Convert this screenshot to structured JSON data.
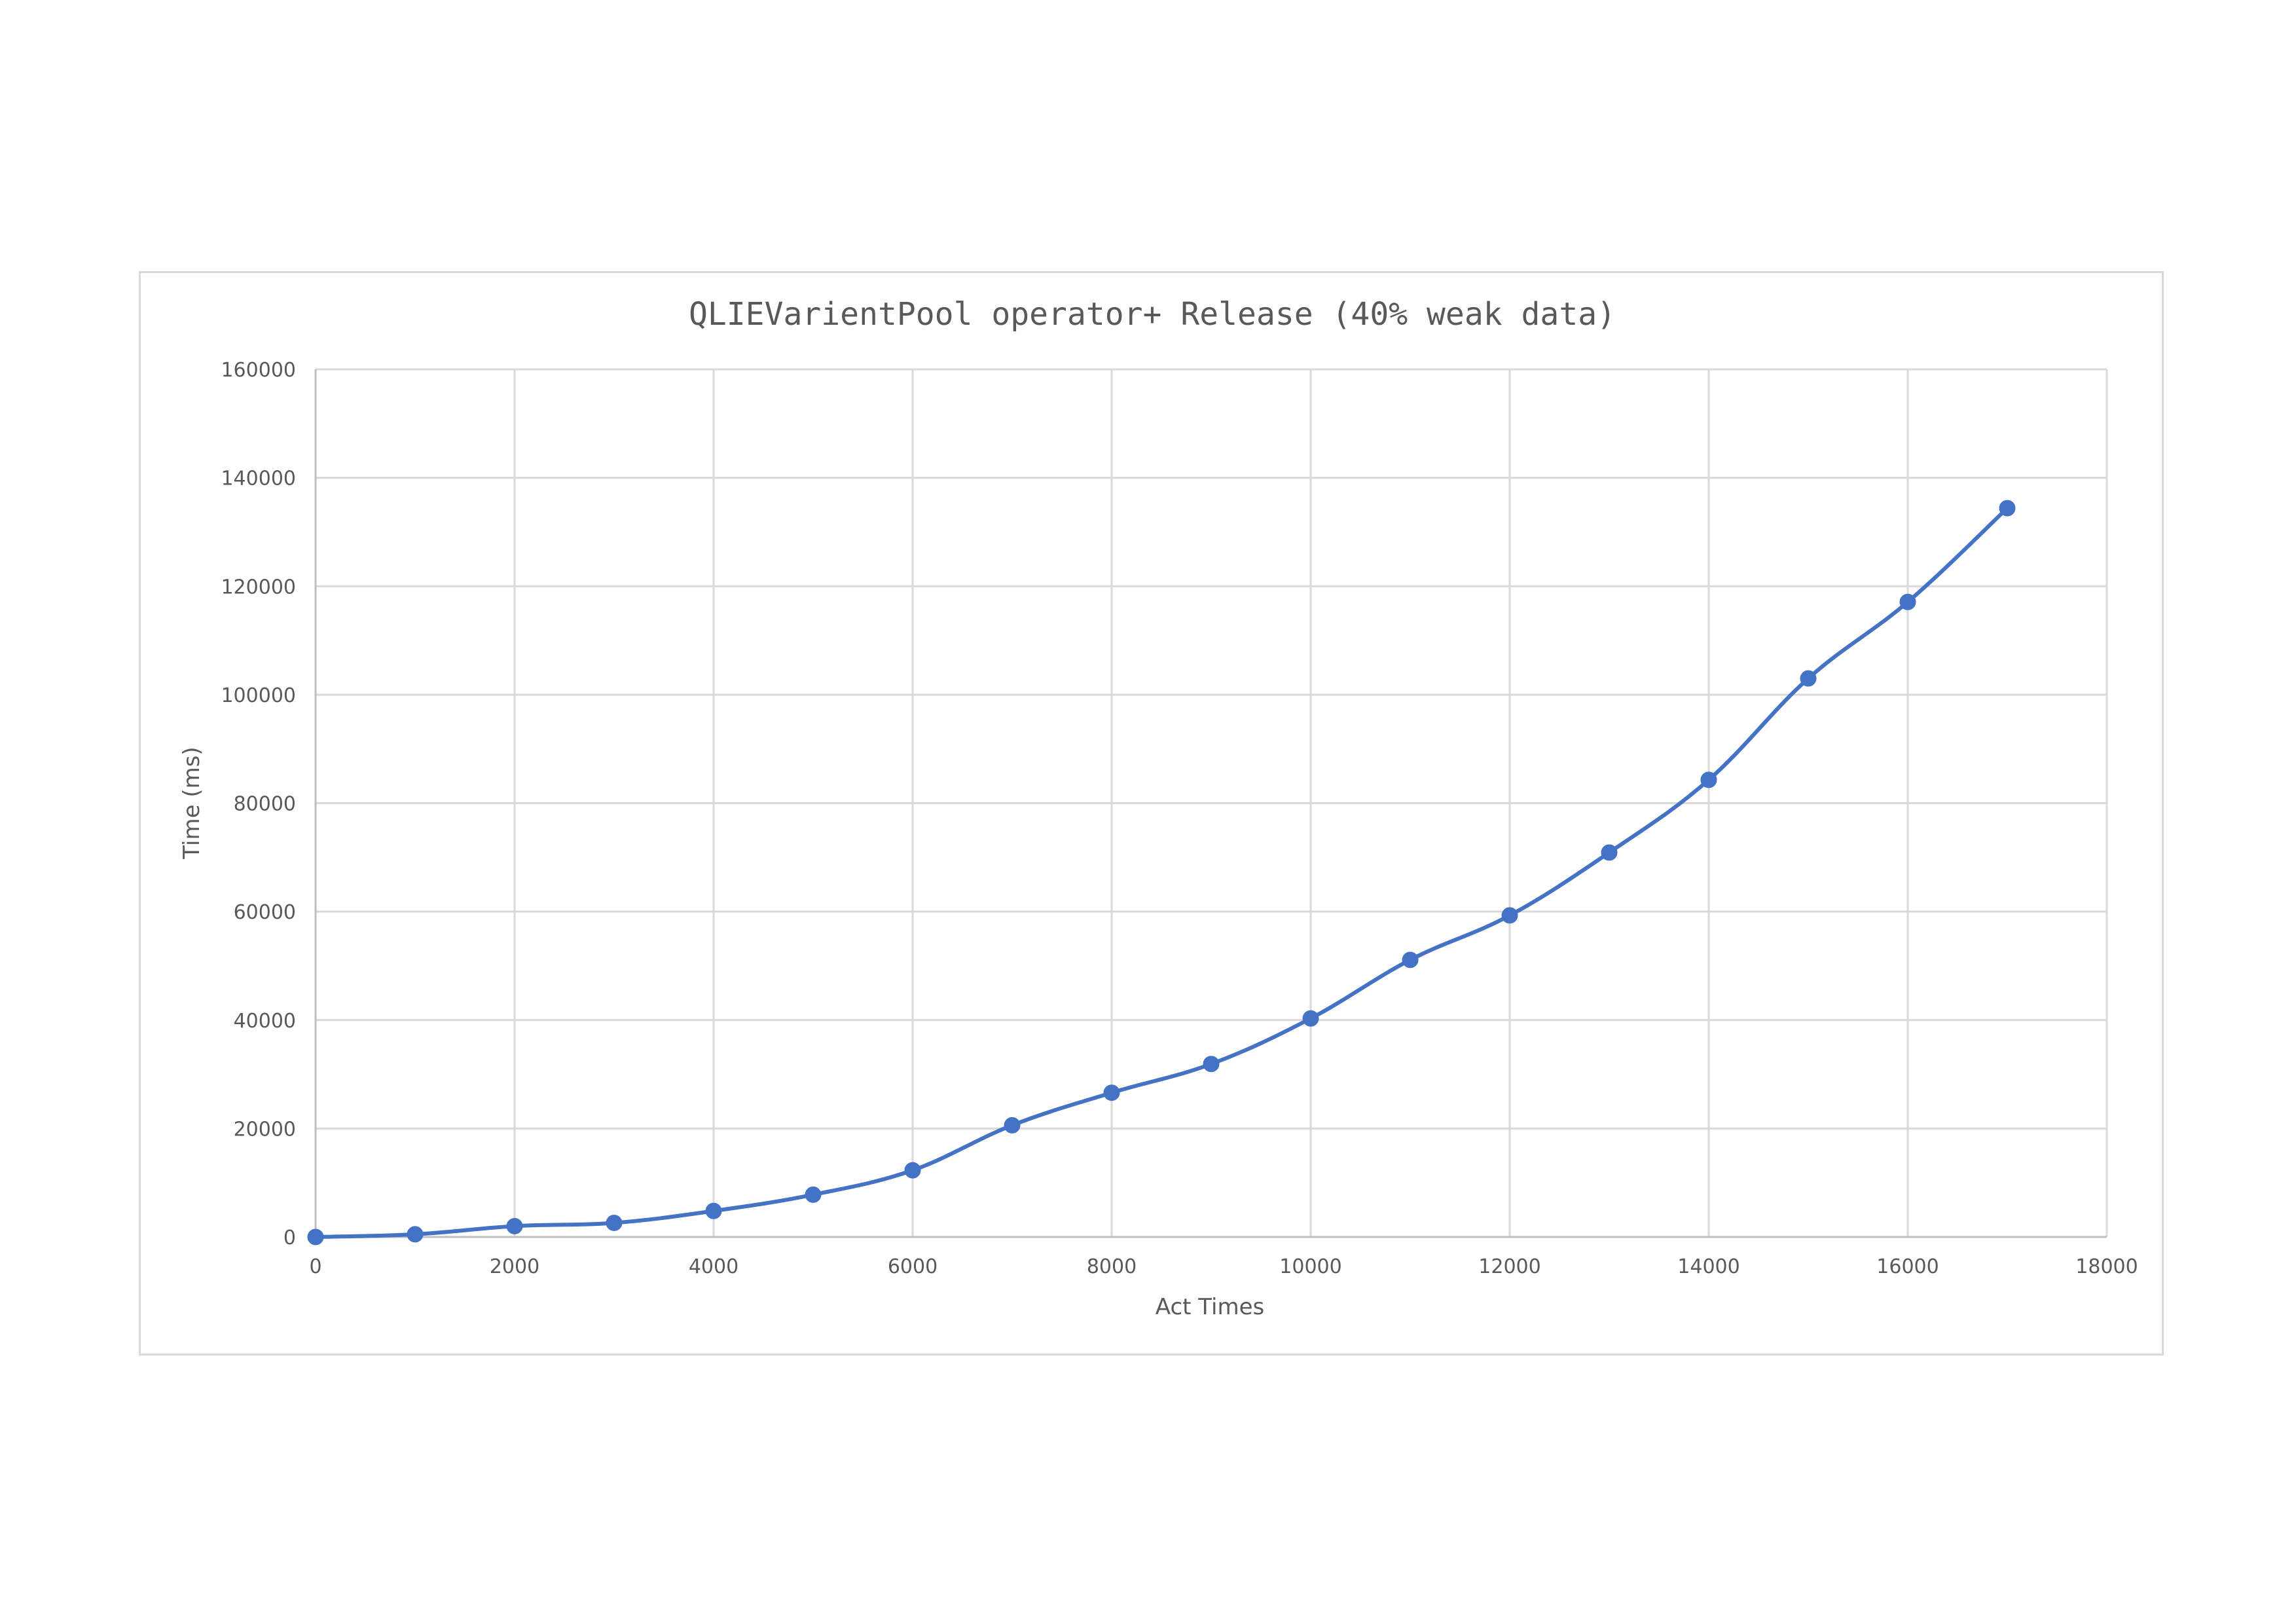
{
  "chart_data": {
    "type": "scatter",
    "title": "QLIEVarientPool operator+ Release (40% weak data)",
    "xlabel": "Act Times",
    "ylabel": "Time (ms)",
    "xlim": [
      0,
      18000
    ],
    "ylim": [
      0,
      160000
    ],
    "x_ticks": [
      "0",
      "2000",
      "4000",
      "6000",
      "8000",
      "10000",
      "12000",
      "14000",
      "16000",
      "18000"
    ],
    "y_ticks": [
      "0",
      "20000",
      "40000",
      "60000",
      "80000",
      "100000",
      "120000",
      "140000",
      "160000"
    ],
    "grid": true,
    "smooth_line": true,
    "markers": true,
    "series_color": "#4472C4",
    "series": [
      {
        "x": [
          0,
          1000,
          2000,
          3000,
          4000,
          5000,
          6000,
          7000,
          8000,
          9000,
          10000,
          11000,
          12000,
          13000,
          14000,
          15000,
          16000,
          17000
        ],
        "values": [
          0,
          500,
          2000,
          2600,
          4800,
          7800,
          12300,
          20600,
          26600,
          31900,
          40300,
          51100,
          59300,
          70900,
          84300,
          103000,
          117100,
          134400
        ]
      }
    ]
  }
}
